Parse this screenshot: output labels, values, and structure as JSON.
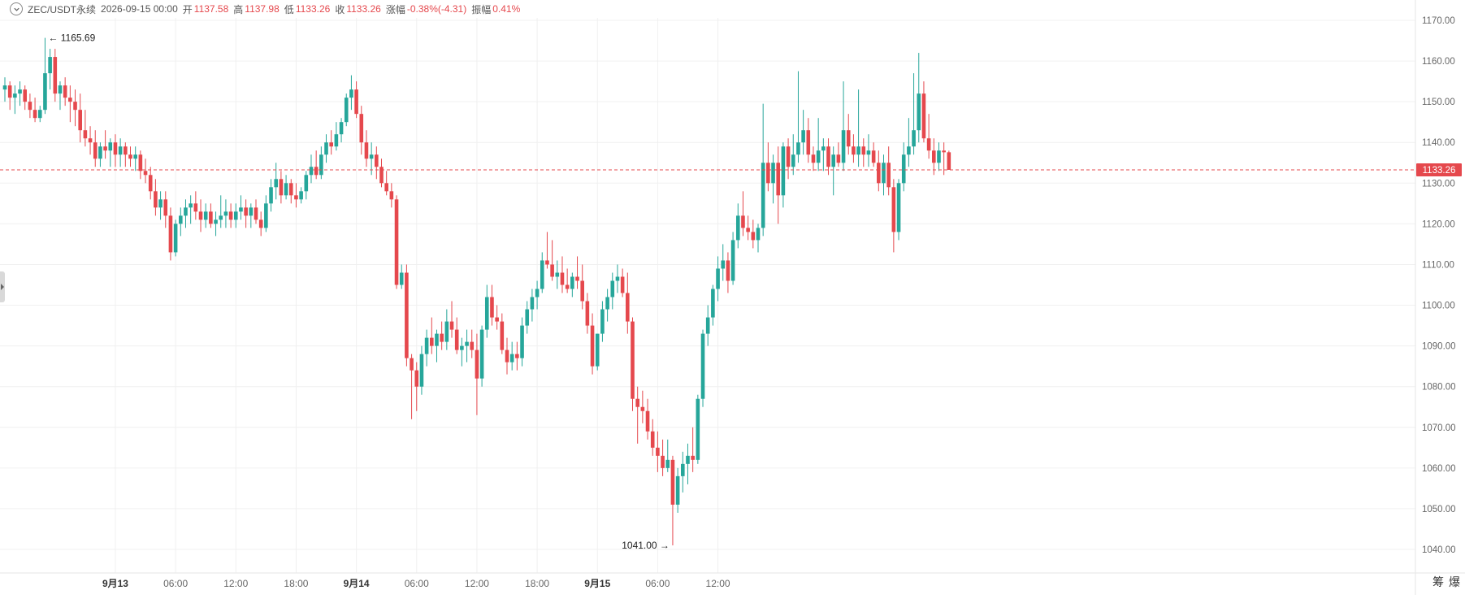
{
  "header": {
    "symbol": "ZEC/USDT永续",
    "datetime": "2026-09-15 00:00",
    "open_label": "开",
    "open_value": "1137.58",
    "high_label": "高",
    "high_value": "1137.98",
    "low_label": "低",
    "low_value": "1133.26",
    "close_label": "收",
    "close_value": "1133.26",
    "change_label": "涨幅",
    "change_value": "-0.38%(-4.31)",
    "amplitude_label": "振幅",
    "amplitude_value": "0.41%"
  },
  "corner": {
    "icon1": "筹",
    "icon2": "爆"
  },
  "colors": {
    "up": "#26a69a",
    "down": "#e5484d",
    "grid": "#f0f0f0",
    "axis_text": "#666666",
    "current_line": "#e5484d"
  },
  "chart_data": {
    "type": "candlestick",
    "interval_minutes": 30,
    "ylim": [
      1035,
      1175
    ],
    "y_ticks": [
      1040,
      1050,
      1060,
      1070,
      1080,
      1090,
      1100,
      1110,
      1120,
      1130,
      1140,
      1150,
      1160,
      1170
    ],
    "y_tick_labels": [
      "1040.00",
      "1050.00",
      "1060.00",
      "1070.00",
      "1080.00",
      "1090.00",
      "1100.00",
      "1110.00",
      "1120.00",
      "1130.00",
      "1140.00",
      "1150.00",
      "1160.00",
      "1170.00"
    ],
    "x_ticks": [
      "9月13",
      "06:00",
      "12:00",
      "18:00",
      "9月14",
      "06:00",
      "12:00",
      "18:00",
      "9月15",
      "06:00",
      "12:00"
    ],
    "bold_x_ticks": [
      "9月13",
      "9月14",
      "9月15"
    ],
    "current_price": 1133.26,
    "current_price_label": "1133.26",
    "max_marker": {
      "value": 1165.69,
      "label": "1165.69"
    },
    "min_marker": {
      "value": 1041.0,
      "label": "1041.00"
    },
    "candles": [
      [
        1153,
        1156,
        1150,
        1154
      ],
      [
        1154,
        1155,
        1148,
        1151
      ],
      [
        1151,
        1154,
        1147,
        1152
      ],
      [
        1152,
        1155,
        1149,
        1153
      ],
      [
        1153,
        1154,
        1148,
        1150
      ],
      [
        1150,
        1152,
        1146,
        1148
      ],
      [
        1148,
        1151,
        1145,
        1146
      ],
      [
        1146,
        1149,
        1145,
        1148
      ],
      [
        1148,
        1165.69,
        1147,
        1157
      ],
      [
        1157,
        1163,
        1153,
        1161
      ],
      [
        1161,
        1163,
        1150,
        1152
      ],
      [
        1152,
        1155,
        1148,
        1154
      ],
      [
        1154,
        1156,
        1149,
        1151
      ],
      [
        1151,
        1154,
        1145,
        1150
      ],
      [
        1150,
        1153,
        1144,
        1148
      ],
      [
        1148,
        1152,
        1140,
        1143
      ],
      [
        1143,
        1148,
        1139,
        1141
      ],
      [
        1141,
        1144,
        1137,
        1140
      ],
      [
        1140,
        1143,
        1134,
        1136
      ],
      [
        1136,
        1140,
        1134,
        1139
      ],
      [
        1139,
        1143,
        1136,
        1138
      ],
      [
        1138,
        1141,
        1134,
        1140
      ],
      [
        1140,
        1142,
        1134,
        1137
      ],
      [
        1137,
        1141,
        1134,
        1139
      ],
      [
        1139,
        1140,
        1134,
        1137
      ],
      [
        1137,
        1139,
        1134,
        1136
      ],
      [
        1136,
        1139,
        1133,
        1137
      ],
      [
        1137,
        1138,
        1131,
        1133
      ],
      [
        1133,
        1136,
        1130,
        1132
      ],
      [
        1132,
        1134,
        1126,
        1128
      ],
      [
        1128,
        1131,
        1122,
        1124
      ],
      [
        1124,
        1128,
        1121,
        1126
      ],
      [
        1126,
        1128,
        1119,
        1122
      ],
      [
        1122,
        1124,
        1111,
        1113
      ],
      [
        1113,
        1121,
        1112,
        1120
      ],
      [
        1120,
        1124,
        1117,
        1122
      ],
      [
        1122,
        1126,
        1119,
        1124
      ],
      [
        1124,
        1127,
        1120,
        1125
      ],
      [
        1125,
        1128,
        1121,
        1123
      ],
      [
        1123,
        1126,
        1118,
        1121
      ],
      [
        1121,
        1125,
        1119,
        1123
      ],
      [
        1123,
        1125,
        1119,
        1120
      ],
      [
        1120,
        1123,
        1117,
        1121
      ],
      [
        1121,
        1127,
        1119,
        1122
      ],
      [
        1122,
        1126,
        1119,
        1123
      ],
      [
        1123,
        1125,
        1119,
        1121
      ],
      [
        1121,
        1125,
        1119,
        1123
      ],
      [
        1123,
        1127,
        1121,
        1124
      ],
      [
        1124,
        1126,
        1119,
        1122
      ],
      [
        1122,
        1125,
        1119,
        1124
      ],
      [
        1124,
        1126,
        1120,
        1121
      ],
      [
        1121,
        1123,
        1117,
        1119
      ],
      [
        1119,
        1127,
        1118,
        1125
      ],
      [
        1125,
        1131,
        1123,
        1129
      ],
      [
        1129,
        1135,
        1126,
        1131
      ],
      [
        1131,
        1133,
        1125,
        1127
      ],
      [
        1127,
        1132,
        1126,
        1130
      ],
      [
        1130,
        1131,
        1125,
        1127
      ],
      [
        1127,
        1130,
        1124,
        1126
      ],
      [
        1126,
        1129,
        1125,
        1128
      ],
      [
        1128,
        1133,
        1126,
        1132
      ],
      [
        1132,
        1137,
        1130,
        1134
      ],
      [
        1134,
        1138,
        1131,
        1132
      ],
      [
        1132,
        1139,
        1131,
        1137
      ],
      [
        1137,
        1142,
        1135,
        1140
      ],
      [
        1140,
        1143,
        1137,
        1139
      ],
      [
        1139,
        1145,
        1138,
        1142
      ],
      [
        1142,
        1146,
        1140,
        1145
      ],
      [
        1145,
        1152,
        1144,
        1151
      ],
      [
        1151,
        1156.5,
        1148,
        1153
      ],
      [
        1153,
        1155,
        1146,
        1147
      ],
      [
        1147,
        1149,
        1137,
        1140
      ],
      [
        1140,
        1143,
        1134,
        1136
      ],
      [
        1136,
        1140,
        1132,
        1137
      ],
      [
        1137,
        1139,
        1131,
        1134
      ],
      [
        1134,
        1136,
        1129,
        1130
      ],
      [
        1130,
        1133,
        1127,
        1128
      ],
      [
        1128,
        1130,
        1124,
        1126
      ],
      [
        1126,
        1127,
        1104,
        1105
      ],
      [
        1105,
        1110,
        1104,
        1108
      ],
      [
        1108,
        1110,
        1085,
        1087
      ],
      [
        1087,
        1088,
        1072,
        1084
      ],
      [
        1084,
        1086,
        1074,
        1080
      ],
      [
        1080,
        1090,
        1078,
        1088
      ],
      [
        1088,
        1094,
        1085,
        1092
      ],
      [
        1092,
        1097,
        1088,
        1090
      ],
      [
        1090,
        1094,
        1086,
        1093
      ],
      [
        1093,
        1096,
        1089,
        1091
      ],
      [
        1091,
        1099,
        1089,
        1096
      ],
      [
        1096,
        1101,
        1092,
        1094
      ],
      [
        1094,
        1097,
        1088,
        1089
      ],
      [
        1089,
        1092,
        1085,
        1090
      ],
      [
        1090,
        1094,
        1086,
        1091
      ],
      [
        1091,
        1094,
        1087,
        1089
      ],
      [
        1089,
        1093,
        1073,
        1082
      ],
      [
        1082,
        1095,
        1080,
        1094
      ],
      [
        1094,
        1105,
        1092,
        1102
      ],
      [
        1102,
        1105,
        1095,
        1097
      ],
      [
        1097,
        1100,
        1094,
        1096
      ],
      [
        1096,
        1098,
        1088,
        1089
      ],
      [
        1089,
        1092,
        1083,
        1086
      ],
      [
        1086,
        1091,
        1084,
        1088
      ],
      [
        1088,
        1091,
        1084,
        1087
      ],
      [
        1087,
        1097,
        1085,
        1095
      ],
      [
        1095,
        1101,
        1093,
        1099
      ],
      [
        1099,
        1104,
        1096,
        1102
      ],
      [
        1102,
        1106,
        1099,
        1104
      ],
      [
        1104,
        1113,
        1103,
        1111
      ],
      [
        1111,
        1118,
        1109,
        1110
      ],
      [
        1110,
        1116,
        1106,
        1107
      ],
      [
        1107,
        1111,
        1104,
        1108
      ],
      [
        1108,
        1112,
        1103,
        1105
      ],
      [
        1105,
        1109,
        1103,
        1104
      ],
      [
        1104,
        1108,
        1102,
        1107
      ],
      [
        1107,
        1112,
        1104,
        1106
      ],
      [
        1106,
        1110,
        1099,
        1101
      ],
      [
        1101,
        1103,
        1093,
        1095
      ],
      [
        1095,
        1098,
        1083,
        1085
      ],
      [
        1085,
        1093,
        1084,
        1093
      ],
      [
        1093,
        1101,
        1091,
        1099
      ],
      [
        1099,
        1104,
        1096,
        1102
      ],
      [
        1102,
        1108,
        1099,
        1106
      ],
      [
        1106,
        1110,
        1103,
        1107
      ],
      [
        1107,
        1109,
        1102,
        1103
      ],
      [
        1103,
        1108,
        1093,
        1096
      ],
      [
        1096,
        1097,
        1074,
        1077
      ],
      [
        1077,
        1080,
        1066,
        1075
      ],
      [
        1075,
        1079,
        1071,
        1074
      ],
      [
        1074,
        1077,
        1067,
        1069
      ],
      [
        1069,
        1072,
        1063,
        1065
      ],
      [
        1065,
        1069,
        1059,
        1063
      ],
      [
        1063,
        1067,
        1058,
        1060
      ],
      [
        1060,
        1067,
        1059,
        1062
      ],
      [
        1062,
        1063,
        1041,
        1051
      ],
      [
        1051,
        1060,
        1049,
        1058
      ],
      [
        1058,
        1064,
        1054,
        1061
      ],
      [
        1061,
        1066,
        1056,
        1063
      ],
      [
        1063,
        1070,
        1059,
        1062
      ],
      [
        1062,
        1078,
        1061,
        1077
      ],
      [
        1077,
        1094,
        1075,
        1093
      ],
      [
        1093,
        1100,
        1090,
        1097
      ],
      [
        1097,
        1105,
        1095,
        1104
      ],
      [
        1104,
        1112,
        1101,
        1109
      ],
      [
        1109,
        1115,
        1106,
        1111
      ],
      [
        1111,
        1113,
        1103,
        1106
      ],
      [
        1106,
        1118,
        1105,
        1116
      ],
      [
        1116,
        1125,
        1114,
        1122
      ],
      [
        1122,
        1128,
        1117,
        1119
      ],
      [
        1119,
        1122,
        1116,
        1118
      ],
      [
        1118,
        1121,
        1114,
        1116
      ],
      [
        1116,
        1120,
        1113,
        1119
      ],
      [
        1119,
        1149.5,
        1117,
        1135
      ],
      [
        1135,
        1140,
        1128,
        1130
      ],
      [
        1130,
        1137,
        1125,
        1135
      ],
      [
        1135,
        1139,
        1120,
        1127
      ],
      [
        1127,
        1140,
        1124,
        1139
      ],
      [
        1139,
        1141,
        1131,
        1134
      ],
      [
        1134,
        1142,
        1132,
        1137
      ],
      [
        1137,
        1157.5,
        1135,
        1140
      ],
      [
        1140,
        1148,
        1137,
        1143
      ],
      [
        1143,
        1146,
        1135,
        1137
      ],
      [
        1137,
        1139,
        1133,
        1135
      ],
      [
        1135,
        1146,
        1133,
        1138
      ],
      [
        1138,
        1141,
        1133,
        1139
      ],
      [
        1139,
        1141,
        1132,
        1134
      ],
      [
        1134,
        1139,
        1127,
        1137
      ],
      [
        1137,
        1140,
        1134,
        1135
      ],
      [
        1135,
        1155,
        1133,
        1143
      ],
      [
        1143,
        1147,
        1137,
        1139
      ],
      [
        1139,
        1142,
        1135,
        1137
      ],
      [
        1137,
        1153,
        1134,
        1139
      ],
      [
        1139,
        1141,
        1134,
        1137
      ],
      [
        1137,
        1142,
        1134,
        1138
      ],
      [
        1138,
        1140,
        1134,
        1135
      ],
      [
        1135,
        1138,
        1128,
        1130
      ],
      [
        1130,
        1137,
        1127,
        1135
      ],
      [
        1135,
        1139,
        1127,
        1129
      ],
      [
        1129,
        1131,
        1113,
        1118
      ],
      [
        1118,
        1131,
        1116,
        1130
      ],
      [
        1130,
        1140,
        1128,
        1137
      ],
      [
        1137,
        1146,
        1134,
        1139
      ],
      [
        1139,
        1157,
        1137,
        1143
      ],
      [
        1143,
        1162,
        1140,
        1152
      ],
      [
        1152,
        1155,
        1140,
        1141
      ],
      [
        1141,
        1147,
        1136,
        1138
      ],
      [
        1138,
        1141,
        1132,
        1135
      ],
      [
        1135,
        1140,
        1133,
        1138
      ],
      [
        1138,
        1140,
        1132,
        1137.58
      ],
      [
        1137.58,
        1137.98,
        1133.26,
        1133.26
      ]
    ]
  }
}
